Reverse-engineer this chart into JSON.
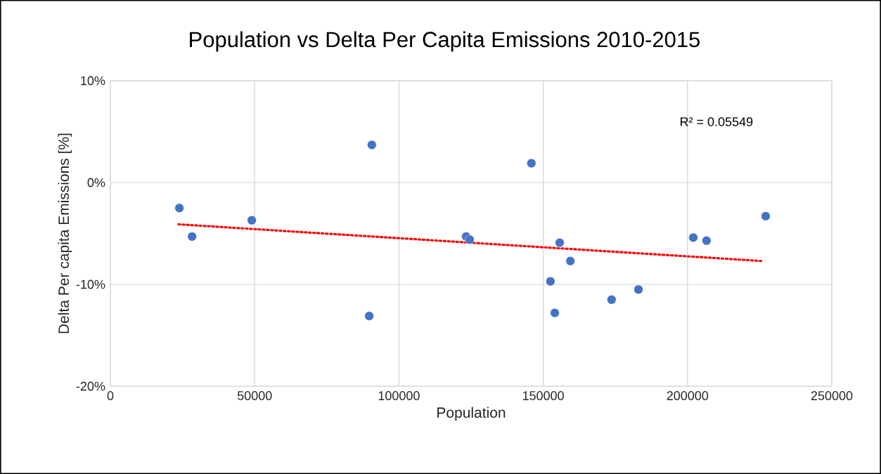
{
  "chart_data": {
    "type": "scatter",
    "title": "Population vs Delta Per Capita Emissions 2010-2015",
    "xlabel": "Population",
    "ylabel": "Delta Per capita Emissions [%]",
    "series": [
      {
        "color": "#4472c4",
        "marker": "circle",
        "x": [
          23900,
          28300,
          49000,
          90600,
          89700,
          123300,
          124500,
          145900,
          155700,
          159400,
          152500,
          154000,
          173700,
          183000,
          202000,
          206600,
          227100
        ],
        "values": [
          -2.5,
          -5.3,
          -3.7,
          3.7,
          -13.1,
          -5.3,
          -5.6,
          1.9,
          -5.9,
          -7.7,
          -9.7,
          -12.8,
          -11.5,
          -10.5,
          -5.4,
          -5.7,
          -3.3
        ]
      },
      {
        "type": "line",
        "color": "#ff0000",
        "marker": "none",
        "line_style": "dotted",
        "x": [
          23600,
          225600
        ],
        "values": [
          -4.1,
          -7.7
        ]
      }
    ],
    "xlim": [
      0,
      250000
    ],
    "xticks": [
      0,
      50000,
      100000,
      150000,
      200000,
      250000
    ],
    "ylim": [
      -20,
      10
    ],
    "yticks": [
      {
        "value": -20,
        "label": "-20%"
      },
      {
        "value": -10,
        "label": "-10%"
      },
      {
        "value": 0,
        "label": "0%"
      },
      {
        "value": 10,
        "label": "10%"
      }
    ],
    "grid": true,
    "legend": false,
    "annotations": [
      "R² = 0.05549"
    ]
  }
}
